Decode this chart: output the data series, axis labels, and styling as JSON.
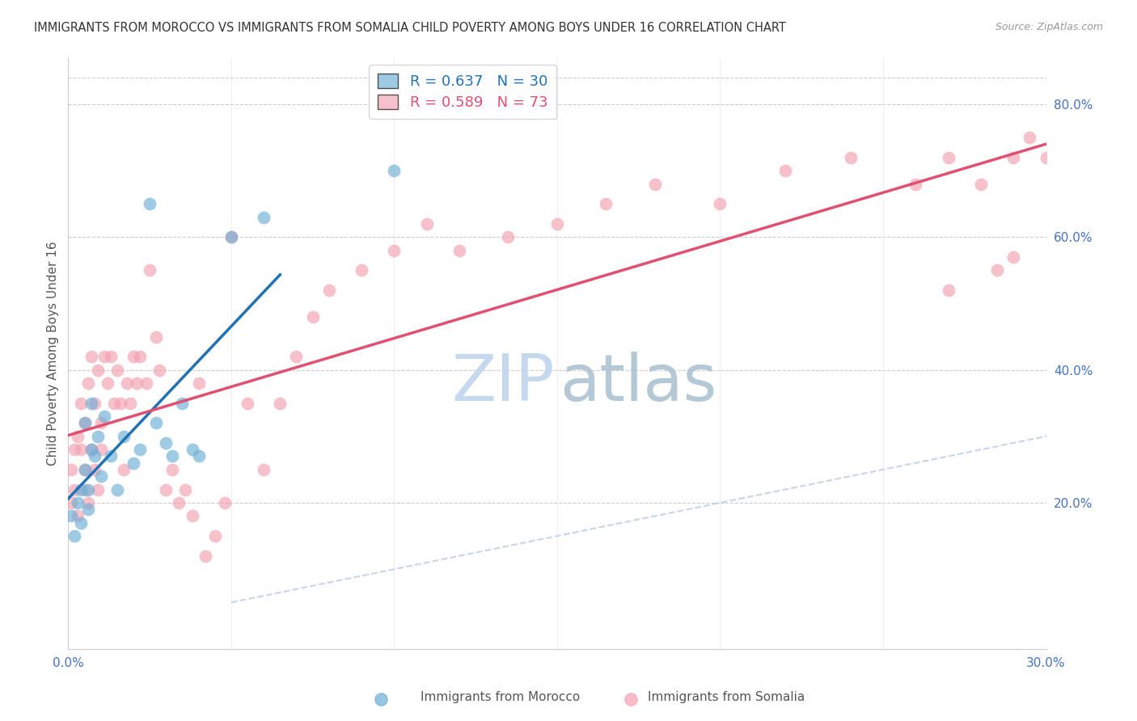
{
  "title": "IMMIGRANTS FROM MOROCCO VS IMMIGRANTS FROM SOMALIA CHILD POVERTY AMONG BOYS UNDER 16 CORRELATION CHART",
  "source": "Source: ZipAtlas.com",
  "ylabel": "Child Poverty Among Boys Under 16",
  "xlim": [
    0.0,
    0.3
  ],
  "ylim": [
    -0.02,
    0.87
  ],
  "morocco_R": 0.637,
  "morocco_N": 30,
  "somalia_R": 0.589,
  "somalia_N": 73,
  "morocco_color": "#6baed6",
  "somalia_color": "#f4a0b0",
  "morocco_line_color": "#2171b5",
  "somalia_line_color": "#e05070",
  "ref_line_color": "#b8cce4",
  "axis_label_color": "#4472c4",
  "morocco_x": [
    0.001,
    0.002,
    0.003,
    0.004,
    0.004,
    0.005,
    0.005,
    0.006,
    0.006,
    0.007,
    0.007,
    0.008,
    0.009,
    0.01,
    0.011,
    0.013,
    0.015,
    0.017,
    0.02,
    0.022,
    0.025,
    0.027,
    0.03,
    0.032,
    0.035,
    0.038,
    0.04,
    0.05,
    0.06,
    0.1
  ],
  "morocco_y": [
    0.18,
    0.15,
    0.2,
    0.17,
    0.22,
    0.25,
    0.32,
    0.22,
    0.19,
    0.28,
    0.35,
    0.27,
    0.3,
    0.24,
    0.33,
    0.27,
    0.22,
    0.3,
    0.26,
    0.28,
    0.65,
    0.32,
    0.29,
    0.27,
    0.35,
    0.28,
    0.27,
    0.6,
    0.63,
    0.7
  ],
  "somalia_x": [
    0.001,
    0.001,
    0.002,
    0.002,
    0.003,
    0.003,
    0.004,
    0.004,
    0.005,
    0.005,
    0.005,
    0.006,
    0.006,
    0.007,
    0.007,
    0.008,
    0.008,
    0.009,
    0.009,
    0.01,
    0.01,
    0.011,
    0.012,
    0.013,
    0.014,
    0.015,
    0.016,
    0.017,
    0.018,
    0.019,
    0.02,
    0.021,
    0.022,
    0.024,
    0.025,
    0.027,
    0.028,
    0.03,
    0.032,
    0.034,
    0.036,
    0.038,
    0.04,
    0.042,
    0.045,
    0.048,
    0.05,
    0.055,
    0.06,
    0.065,
    0.07,
    0.075,
    0.08,
    0.09,
    0.1,
    0.11,
    0.12,
    0.135,
    0.15,
    0.165,
    0.18,
    0.2,
    0.22,
    0.24,
    0.26,
    0.27,
    0.28,
    0.29,
    0.295,
    0.3,
    0.29,
    0.285,
    0.27
  ],
  "somalia_y": [
    0.25,
    0.2,
    0.28,
    0.22,
    0.3,
    0.18,
    0.35,
    0.28,
    0.22,
    0.32,
    0.25,
    0.38,
    0.2,
    0.28,
    0.42,
    0.25,
    0.35,
    0.22,
    0.4,
    0.28,
    0.32,
    0.42,
    0.38,
    0.42,
    0.35,
    0.4,
    0.35,
    0.25,
    0.38,
    0.35,
    0.42,
    0.38,
    0.42,
    0.38,
    0.55,
    0.45,
    0.4,
    0.22,
    0.25,
    0.2,
    0.22,
    0.18,
    0.38,
    0.12,
    0.15,
    0.2,
    0.6,
    0.35,
    0.25,
    0.35,
    0.42,
    0.48,
    0.52,
    0.55,
    0.58,
    0.62,
    0.58,
    0.6,
    0.62,
    0.65,
    0.68,
    0.65,
    0.7,
    0.72,
    0.68,
    0.72,
    0.68,
    0.72,
    0.75,
    0.72,
    0.57,
    0.55,
    0.52
  ]
}
